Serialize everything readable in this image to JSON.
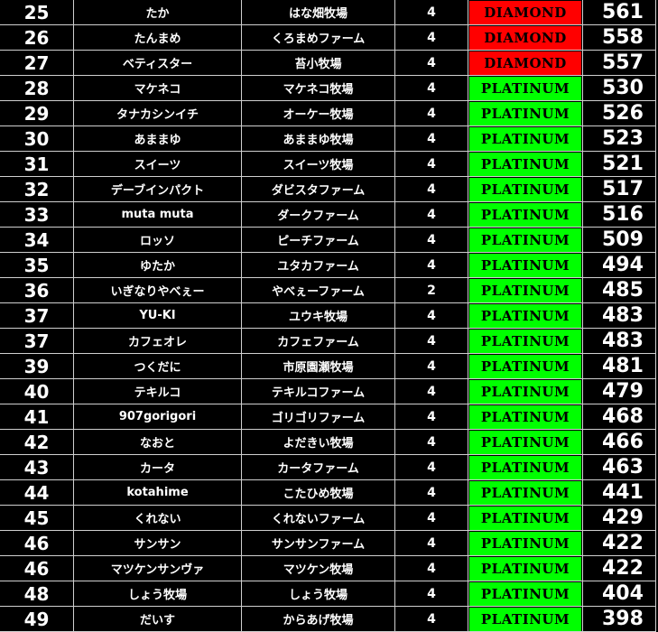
{
  "colors": {
    "DIAMOND": "#ff0000",
    "PLATINUM": "#00ff00"
  },
  "rows": [
    {
      "rank": "25",
      "name": "たか",
      "farm": "はな畑牧場",
      "count": "4",
      "tier": "DIAMOND",
      "score": "561"
    },
    {
      "rank": "26",
      "name": "たんまめ",
      "farm": "くろまめファーム",
      "count": "4",
      "tier": "DIAMOND",
      "score": "558"
    },
    {
      "rank": "27",
      "name": "ベティスター",
      "farm": "苔小牧場",
      "count": "4",
      "tier": "DIAMOND",
      "score": "557"
    },
    {
      "rank": "28",
      "name": "マケネコ",
      "farm": "マケネコ牧場",
      "count": "4",
      "tier": "PLATINUM",
      "score": "530"
    },
    {
      "rank": "29",
      "name": "タナカシンイチ",
      "farm": "オーケー牧場",
      "count": "4",
      "tier": "PLATINUM",
      "score": "526"
    },
    {
      "rank": "30",
      "name": "あままゆ",
      "farm": "あままゆ牧場",
      "count": "4",
      "tier": "PLATINUM",
      "score": "523"
    },
    {
      "rank": "31",
      "name": "スイーツ",
      "farm": "スイーツ牧場",
      "count": "4",
      "tier": "PLATINUM",
      "score": "521"
    },
    {
      "rank": "32",
      "name": "デーブインパクト",
      "farm": "ダビスタファーム",
      "count": "4",
      "tier": "PLATINUM",
      "score": "517"
    },
    {
      "rank": "33",
      "name": "muta muta",
      "farm": "ダークファーム",
      "count": "4",
      "tier": "PLATINUM",
      "score": "516"
    },
    {
      "rank": "34",
      "name": "ロッソ",
      "farm": "ピーチファーム",
      "count": "4",
      "tier": "PLATINUM",
      "score": "509"
    },
    {
      "rank": "35",
      "name": "ゆたか",
      "farm": "ユタカファーム",
      "count": "4",
      "tier": "PLATINUM",
      "score": "494"
    },
    {
      "rank": "36",
      "name": "いぎなりやべぇー",
      "farm": "やべぇーファーム",
      "count": "2",
      "tier": "PLATINUM",
      "score": "485"
    },
    {
      "rank": "37",
      "name": "YU-KI",
      "farm": "ユウキ牧場",
      "count": "4",
      "tier": "PLATINUM",
      "score": "483"
    },
    {
      "rank": "37",
      "name": "カフェオレ",
      "farm": "カフェファーム",
      "count": "4",
      "tier": "PLATINUM",
      "score": "483"
    },
    {
      "rank": "39",
      "name": "つくだに",
      "farm": "市原園瀬牧場",
      "count": "4",
      "tier": "PLATINUM",
      "score": "481"
    },
    {
      "rank": "40",
      "name": "テキルコ",
      "farm": "テキルコファーム",
      "count": "4",
      "tier": "PLATINUM",
      "score": "479"
    },
    {
      "rank": "41",
      "name": "907gorigori",
      "farm": "ゴリゴリファーム",
      "count": "4",
      "tier": "PLATINUM",
      "score": "468"
    },
    {
      "rank": "42",
      "name": "なおと",
      "farm": "よだきい牧場",
      "count": "4",
      "tier": "PLATINUM",
      "score": "466"
    },
    {
      "rank": "43",
      "name": "カータ",
      "farm": "カータファーム",
      "count": "4",
      "tier": "PLATINUM",
      "score": "463"
    },
    {
      "rank": "44",
      "name": "kotahime",
      "farm": "こたひめ牧場",
      "count": "4",
      "tier": "PLATINUM",
      "score": "441"
    },
    {
      "rank": "45",
      "name": "くれない",
      "farm": "くれないファーム",
      "count": "4",
      "tier": "PLATINUM",
      "score": "429"
    },
    {
      "rank": "46",
      "name": "サンサン",
      "farm": "サンサンファーム",
      "count": "4",
      "tier": "PLATINUM",
      "score": "422"
    },
    {
      "rank": "46",
      "name": "マツケンサンヴァ",
      "farm": "マツケン牧場",
      "count": "4",
      "tier": "PLATINUM",
      "score": "422"
    },
    {
      "rank": "48",
      "name": "しょう牧場",
      "farm": "しょう牧場",
      "count": "4",
      "tier": "PLATINUM",
      "score": "404"
    },
    {
      "rank": "49",
      "name": "だいす",
      "farm": "からあげ牧場",
      "count": "4",
      "tier": "PLATINUM",
      "score": "398"
    }
  ]
}
